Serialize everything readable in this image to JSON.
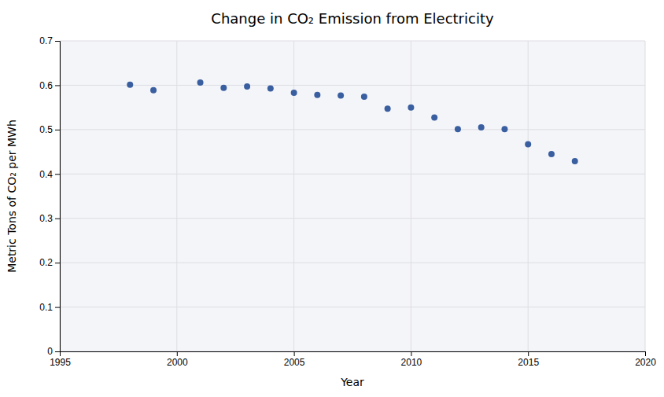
{
  "chart_data": {
    "type": "scatter",
    "title": "Change in CO₂ Emission from Electricity",
    "xlabel": "Year",
    "ylabel": "Metric Tons of CO₂ per MWh",
    "x": [
      1998,
      1999,
      2001,
      2002,
      2003,
      2004,
      2005,
      2006,
      2007,
      2008,
      2009,
      2010,
      2011,
      2012,
      2013,
      2014,
      2015,
      2016,
      2017
    ],
    "values": [
      0.601,
      0.589,
      0.606,
      0.594,
      0.597,
      0.593,
      0.583,
      0.578,
      0.577,
      0.574,
      0.547,
      0.55,
      0.527,
      0.501,
      0.505,
      0.501,
      0.467,
      0.445,
      0.429
    ],
    "color": "#3A5FA0",
    "xlim": [
      1995,
      2020
    ],
    "ylim": [
      0,
      0.7
    ],
    "xticks": [
      1995,
      2000,
      2005,
      2010,
      2015,
      2020
    ],
    "yticks": [
      0,
      0.1,
      0.2,
      0.3,
      0.4,
      0.5,
      0.6,
      0.7
    ],
    "grid": true
  }
}
